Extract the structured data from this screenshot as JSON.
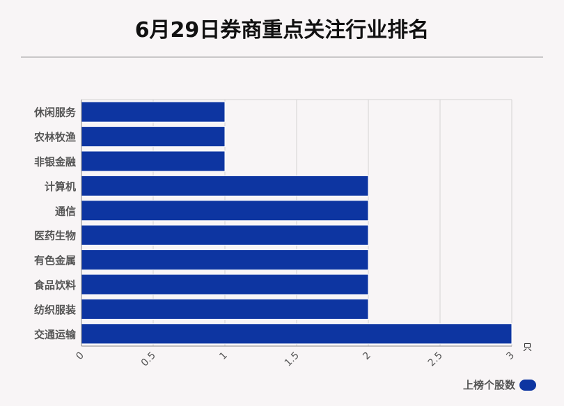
{
  "title": "6月29日券商重点关注行业排名",
  "chart_data": {
    "type": "bar",
    "orientation": "horizontal",
    "categories": [
      "休闲服务",
      "农林牧渔",
      "非银金融",
      "计算机",
      "通信",
      "医药生物",
      "有色金属",
      "食品饮料",
      "纺织服装",
      "交通运输"
    ],
    "series": [
      {
        "name": "上榜个股数",
        "values": [
          1,
          1,
          1,
          2,
          2,
          2,
          2,
          2,
          2,
          3
        ]
      }
    ],
    "xlim": [
      0,
      3
    ],
    "xticks": [
      "0",
      "0.5",
      "1",
      "1.5",
      "2",
      "2.5",
      "3"
    ],
    "xunit": "只",
    "grid": true,
    "legend_position": "bottom-right"
  },
  "colors": {
    "bar": "#0d35a1",
    "grid": "#d4d2d3"
  }
}
